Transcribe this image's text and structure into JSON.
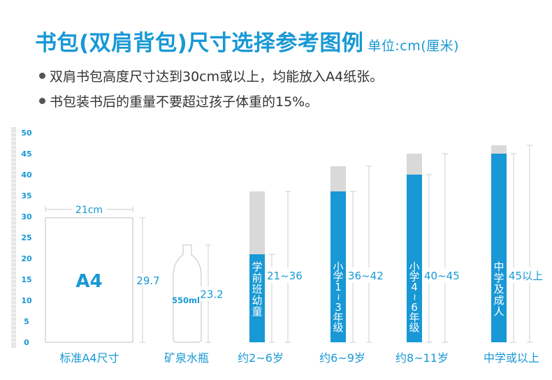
{
  "header": {
    "title": "书包(双肩背包)尺寸选择参考图例",
    "unit": "单位:cm(厘米)",
    "notes": [
      "双肩书包高度尺寸达到30cm或以上，均能放入A4纸张。",
      "书包装书后的重量不要超过孩子体重的15%。"
    ]
  },
  "colors": {
    "accent": "#1898d5",
    "bar_range": "#d9d9d9",
    "outline": "#cccccc",
    "text_dark": "#333333",
    "ruler": "#e6e6e6"
  },
  "chart_data": {
    "type": "bar",
    "ylim": [
      0,
      50
    ],
    "yticks": [
      0,
      5,
      10,
      15,
      20,
      25,
      30,
      35,
      40,
      45,
      50
    ],
    "reference_items": [
      {
        "category": "标准A4尺寸",
        "label": "A4",
        "width_label": "21cm",
        "height_value": 29.7,
        "height_label": "29.7"
      },
      {
        "category": "矿泉水瓶",
        "label": "550ml",
        "height_value": 23.2,
        "height_label": "23.2"
      }
    ],
    "categories": [
      "约2~6岁",
      "约6~9岁",
      "约8~11岁",
      "中学或以上"
    ],
    "series": [
      {
        "bar_text": "学前班幼童",
        "min": 21,
        "max": 36,
        "range_label": "21~36"
      },
      {
        "bar_text": "小学1~3年级",
        "min": 36,
        "max": 42,
        "range_label": "36~42"
      },
      {
        "bar_text": "小学4~6年级",
        "min": 40,
        "max": 45,
        "range_label": "40~45"
      },
      {
        "bar_text": "中学及成人",
        "min": 45,
        "max": 47,
        "range_label": "45以上"
      }
    ]
  }
}
